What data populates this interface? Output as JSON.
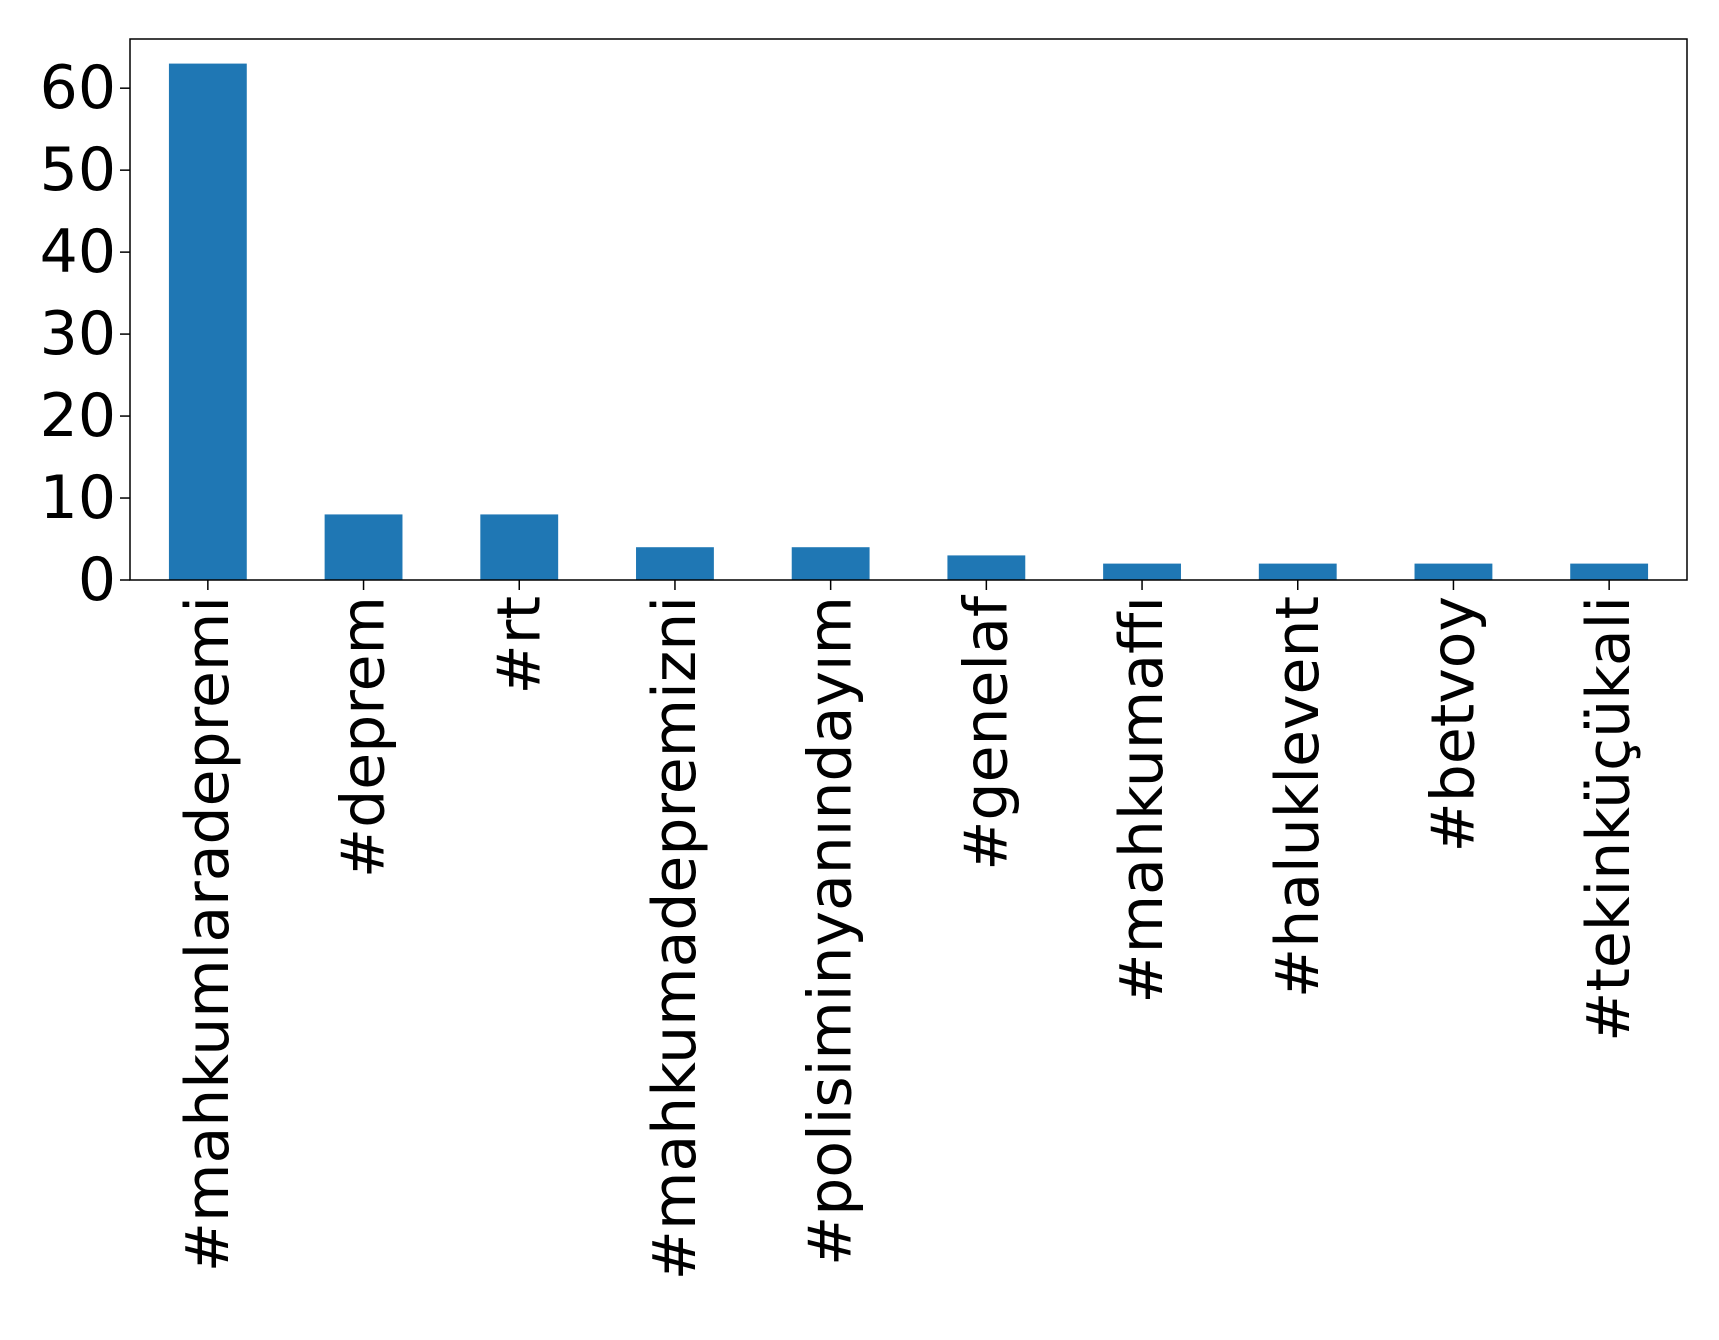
{
  "chart_data": {
    "type": "bar",
    "title": "",
    "xlabel": "",
    "ylabel": "",
    "categories": [
      "#mahkumlaradepremi",
      "#deprem",
      "#rt",
      "#mahkumadepremizni",
      "#polisiminyanındayım",
      "#genelaf",
      "#mahkumaffı",
      "#haluklevent",
      "#betvoy",
      "#tekinküçükali"
    ],
    "values": [
      63,
      8,
      8,
      4,
      4,
      3,
      2,
      2,
      2,
      2
    ],
    "ylim": [
      0,
      66
    ],
    "yticks": [
      0,
      10,
      20,
      30,
      40,
      50,
      60
    ],
    "bar_color": "#1f77b4",
    "grid": false,
    "legend": "none",
    "x_tick_rotation": "vertical"
  }
}
